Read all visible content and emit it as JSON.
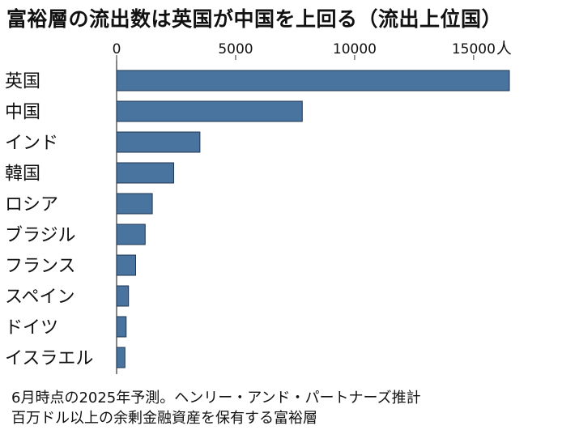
{
  "chart_data": {
    "type": "bar",
    "orientation": "horizontal",
    "title": "富裕層の流出数は英国が中国を上回る（流出上位国）",
    "unit": "人",
    "xlim": [
      0,
      16500
    ],
    "ticks": [
      0,
      5000,
      10000,
      15000
    ],
    "tick_labels": [
      "0",
      "5000",
      "10000",
      "15000"
    ],
    "categories": [
      "英国",
      "中国",
      "インド",
      "韓国",
      "ロシア",
      "ブラジル",
      "フランス",
      "スペイン",
      "ドイツ",
      "イスラエル"
    ],
    "values": [
      16500,
      7800,
      3500,
      2400,
      1500,
      1200,
      800,
      500,
      400,
      350
    ],
    "bar_color": "#4a74a0",
    "grid": false,
    "legend": "none"
  },
  "notes": {
    "line1": "6月時点の2025年予測。ヘンリー・アンド・パートナーズ推計",
    "line2": "百万ドル以上の余剰金融資産を保有する富裕層"
  }
}
